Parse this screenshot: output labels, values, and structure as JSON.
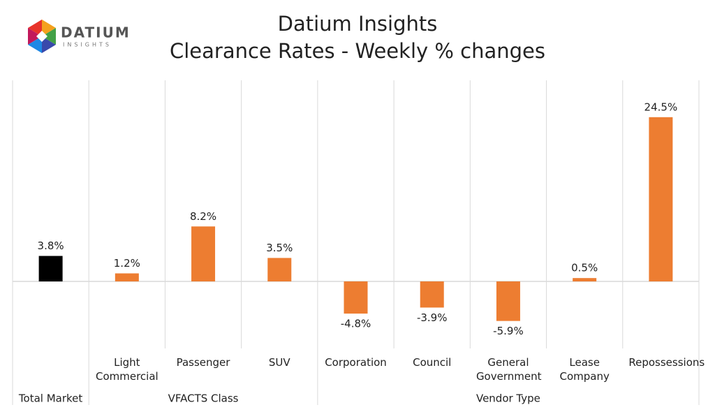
{
  "logo": {
    "name": "DATIUM",
    "tagline": "INSIGHTS"
  },
  "chart_data": {
    "type": "bar",
    "title": "Datium Insights",
    "subtitle": "Clearance Rates - Weekly % changes",
    "categories": [
      null,
      "Light Commercial",
      "Passenger",
      "SUV",
      "Corporation",
      "Council",
      "General Government",
      "Lease Company",
      "Repossessions"
    ],
    "groups": [
      {
        "label": "Total Market",
        "count": 1
      },
      {
        "label": "VFACTS Class",
        "count": 3
      },
      {
        "label": "Vendor Type",
        "count": 5
      }
    ],
    "values": [
      3.8,
      1.2,
      8.2,
      3.5,
      -4.8,
      -3.9,
      -5.9,
      0.5,
      24.5
    ],
    "value_labels": [
      "3.8%",
      "1.2%",
      "8.2%",
      "3.5%",
      "-4.8%",
      "-3.9%",
      "-5.9%",
      "0.5%",
      "24.5%"
    ],
    "colors": [
      "#000000",
      "#ed7d31",
      "#ed7d31",
      "#ed7d31",
      "#ed7d31",
      "#ed7d31",
      "#ed7d31",
      "#ed7d31",
      "#ed7d31"
    ],
    "ylim": [
      -10,
      30
    ]
  }
}
